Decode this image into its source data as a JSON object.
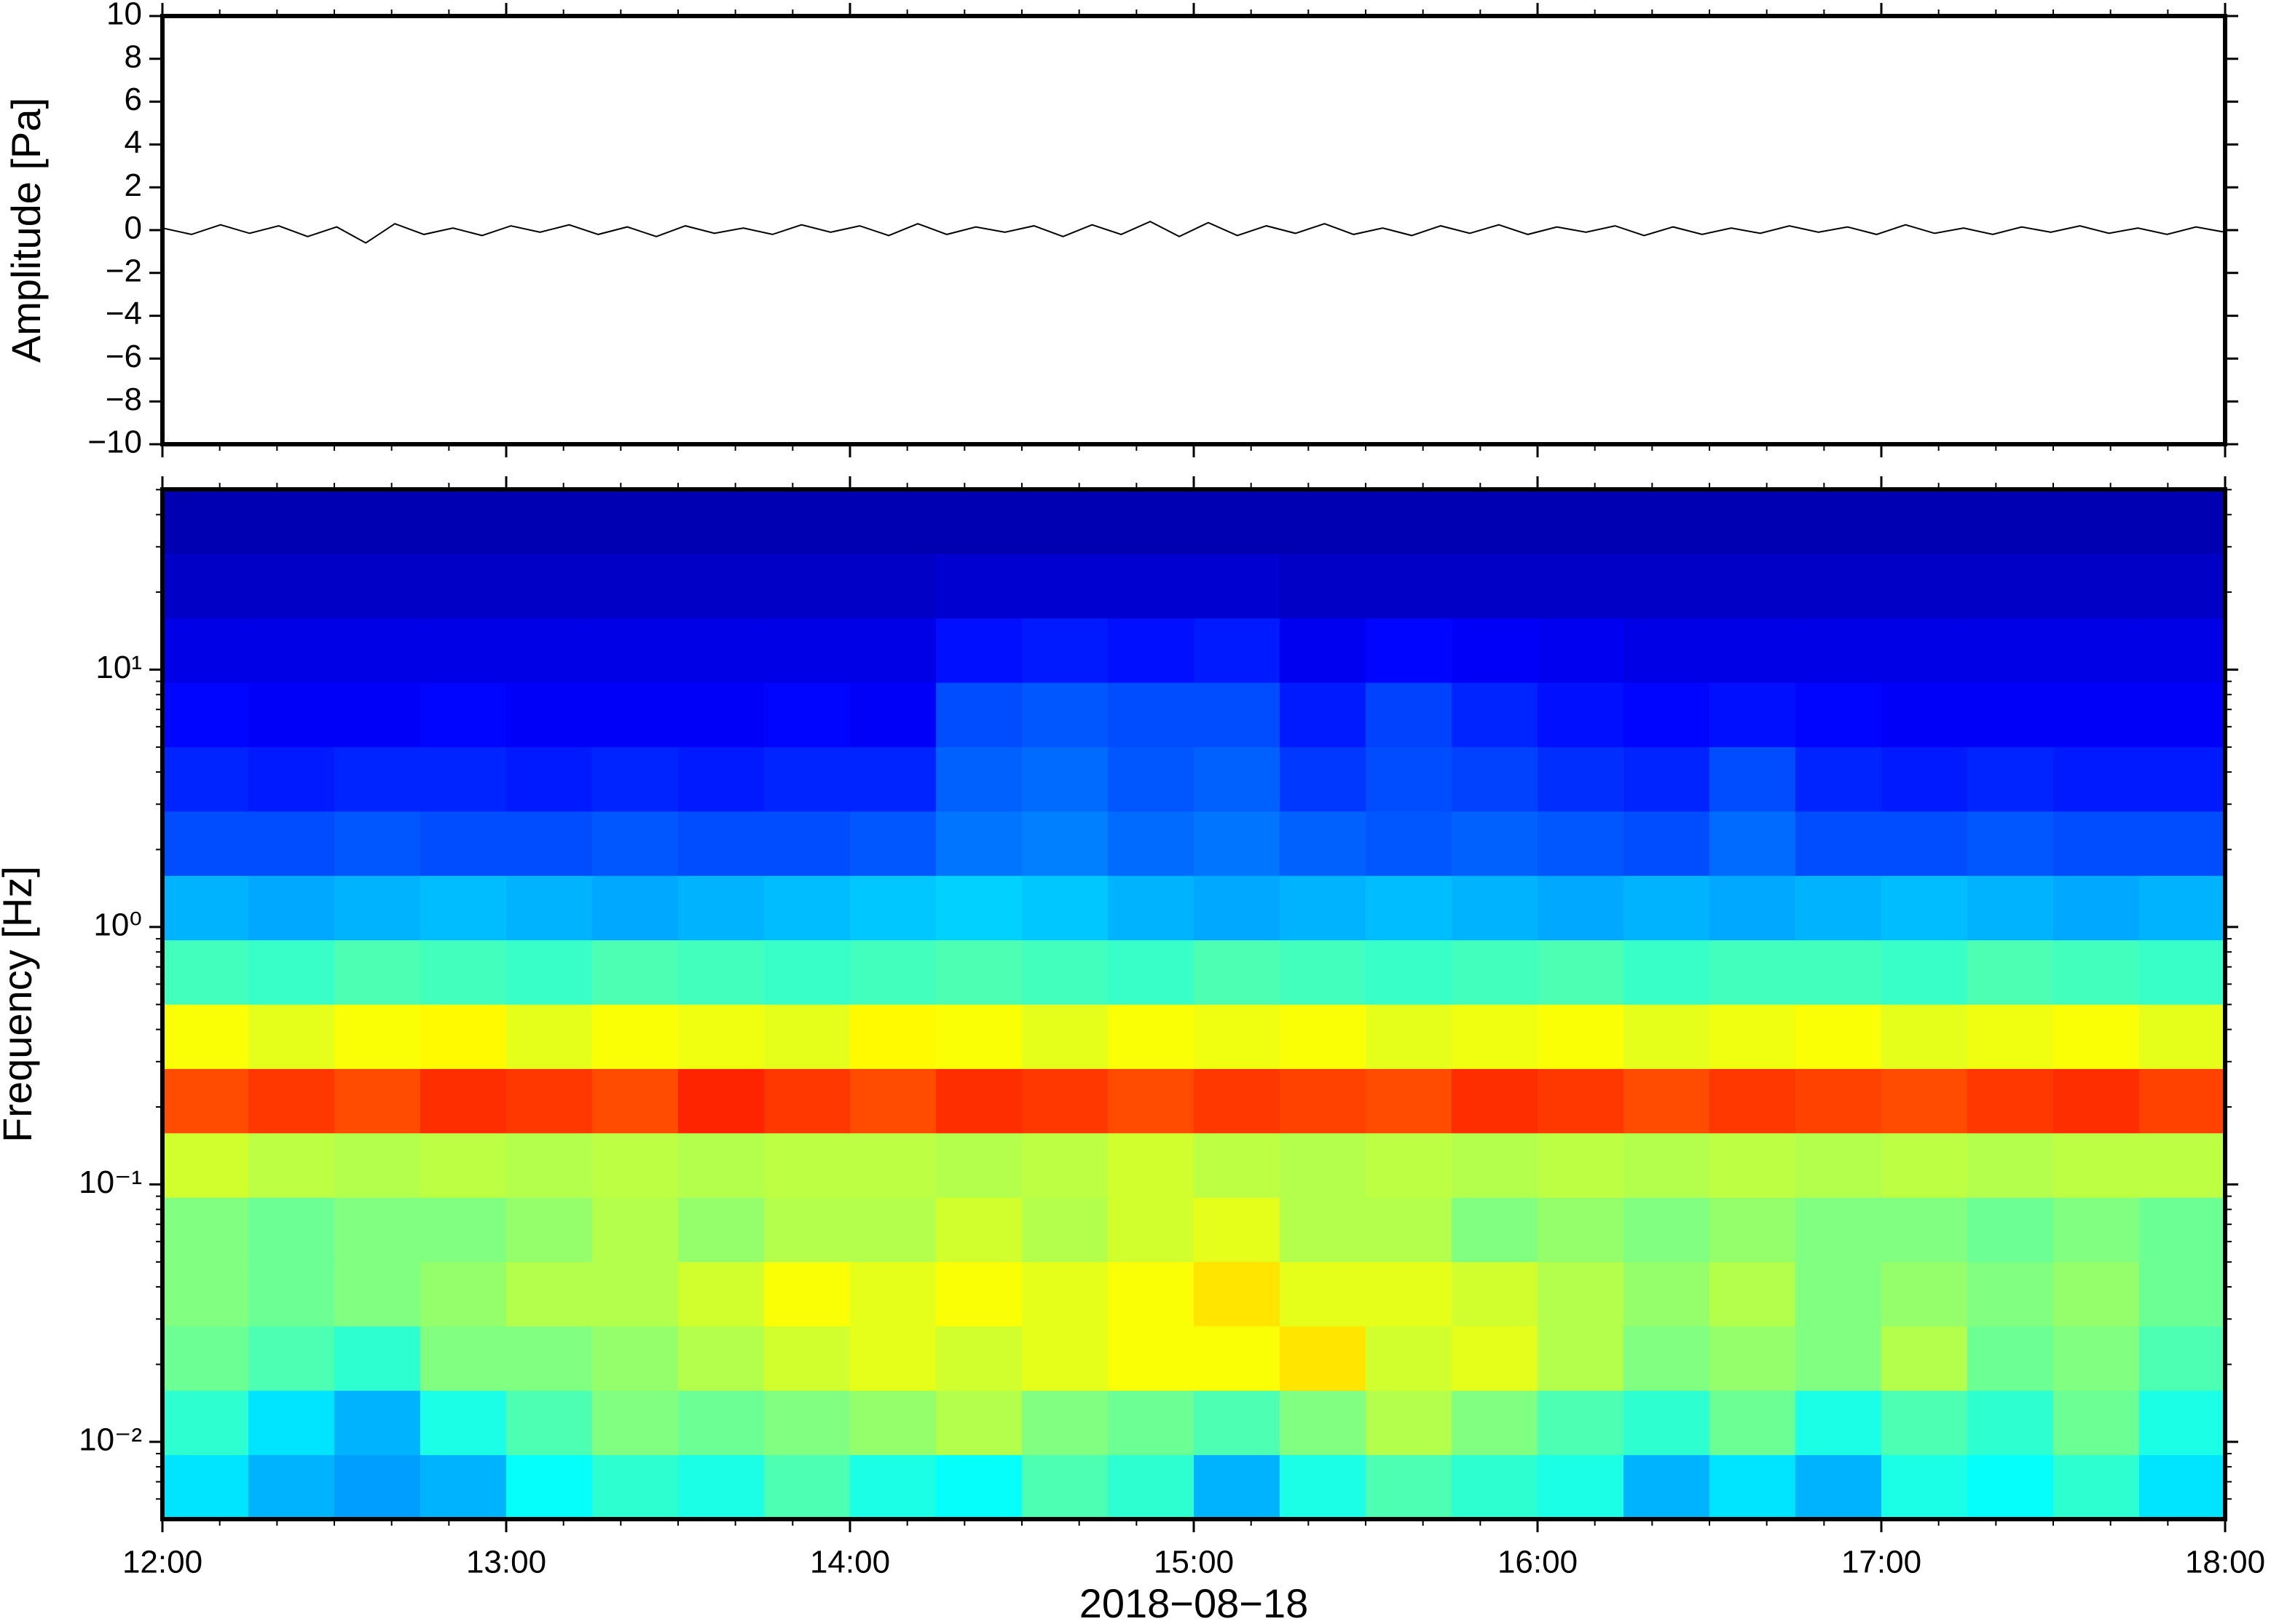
{
  "chart_data": [
    {
      "type": "line",
      "ylabel": "Amplitude [Pa]",
      "color": "#000000",
      "xlim": [
        12,
        18
      ],
      "xticks": [
        12,
        13,
        14,
        15,
        16,
        17,
        18
      ],
      "ylim": [
        -10,
        10
      ],
      "yticks": [
        {
          "value": -10,
          "label": "−10"
        },
        {
          "value": -8,
          "label": "−8"
        },
        {
          "value": -6,
          "label": "−6"
        },
        {
          "value": -4,
          "label": "−4"
        },
        {
          "value": -2,
          "label": "−2"
        },
        0,
        2,
        4,
        6,
        8,
        10
      ],
      "values": [
        0.1,
        -0.2,
        0.25,
        -0.15,
        0.2,
        -0.3,
        0.15,
        -0.6,
        0.3,
        -0.2,
        0.1,
        -0.25,
        0.2,
        -0.1,
        0.25,
        -0.2,
        0.15,
        -0.3,
        0.2,
        -0.15,
        0.1,
        -0.2,
        0.25,
        -0.1,
        0.2,
        -0.25,
        0.3,
        -0.2,
        0.15,
        -0.1,
        0.2,
        -0.3,
        0.25,
        -0.2,
        0.4,
        -0.3,
        0.35,
        -0.25,
        0.2,
        -0.15,
        0.3,
        -0.2,
        0.1,
        -0.25,
        0.2,
        -0.15,
        0.25,
        -0.2,
        0.15,
        -0.1,
        0.2,
        -0.25,
        0.15,
        -0.2,
        0.1,
        -0.15,
        0.2,
        -0.1,
        0.15,
        -0.2,
        0.25,
        -0.15,
        0.1,
        -0.2,
        0.15,
        -0.1,
        0.2,
        -0.15,
        0.1,
        -0.2,
        0.15,
        -0.1
      ]
    },
    {
      "type": "heatmap",
      "xlabel": "2018−08−18",
      "ylabel": "Frequency [Hz]",
      "xlim": [
        12,
        18
      ],
      "xticks": [
        {
          "value": 12,
          "label": "12:00"
        },
        {
          "value": 13,
          "label": "13:00"
        },
        {
          "value": 14,
          "label": "14:00"
        },
        {
          "value": 15,
          "label": "15:00"
        },
        {
          "value": 16,
          "label": "16:00"
        },
        {
          "value": 17,
          "label": "17:00"
        },
        {
          "value": 18,
          "label": "18:00"
        }
      ],
      "ylim": [
        0.00501,
        50.12
      ],
      "log_y": true,
      "yticks": [
        {
          "value": 0.01,
          "label": "10⁻²"
        },
        {
          "value": 0.1,
          "label": "10⁻¹"
        },
        {
          "value": 1,
          "label": "10⁰"
        },
        {
          "value": 10,
          "label": "10¹"
        }
      ],
      "colormap": "jet",
      "zlim": [
        0,
        1
      ],
      "x_edges": [
        12,
        12.25,
        12.5,
        12.75,
        13,
        13.25,
        13.5,
        13.75,
        14,
        14.25,
        14.5,
        14.75,
        15,
        15.25,
        15.5,
        15.75,
        16,
        16.25,
        16.5,
        16.75,
        17,
        17.25,
        17.5,
        17.75,
        18
      ],
      "y_edges": [
        0.00501,
        0.00891,
        0.01585,
        0.02818,
        0.0501,
        0.0891,
        0.1585,
        0.2818,
        0.501,
        0.891,
        1.585,
        2.818,
        5.012,
        8.913,
        15.85,
        28.18,
        50.12
      ],
      "z": [
        [
          0.35,
          0.3,
          0.28,
          0.3,
          0.38,
          0.42,
          0.4,
          0.45,
          0.4,
          0.38,
          0.45,
          0.42,
          0.3,
          0.4,
          0.45,
          0.42,
          0.4,
          0.3,
          0.35,
          0.3,
          0.4,
          0.38,
          0.42,
          0.35
        ],
        [
          0.42,
          0.35,
          0.3,
          0.4,
          0.45,
          0.5,
          0.48,
          0.5,
          0.52,
          0.55,
          0.5,
          0.48,
          0.45,
          0.5,
          0.55,
          0.5,
          0.45,
          0.42,
          0.48,
          0.4,
          0.45,
          0.42,
          0.48,
          0.4
        ],
        [
          0.48,
          0.45,
          0.42,
          0.5,
          0.5,
          0.52,
          0.55,
          0.58,
          0.6,
          0.58,
          0.6,
          0.62,
          0.62,
          0.65,
          0.58,
          0.6,
          0.55,
          0.5,
          0.52,
          0.5,
          0.55,
          0.48,
          0.5,
          0.45
        ],
        [
          0.5,
          0.48,
          0.5,
          0.52,
          0.55,
          0.55,
          0.58,
          0.62,
          0.6,
          0.62,
          0.6,
          0.62,
          0.65,
          0.6,
          0.6,
          0.58,
          0.55,
          0.52,
          0.55,
          0.5,
          0.52,
          0.5,
          0.52,
          0.48
        ],
        [
          0.5,
          0.48,
          0.5,
          0.5,
          0.52,
          0.55,
          0.52,
          0.55,
          0.55,
          0.58,
          0.55,
          0.58,
          0.6,
          0.55,
          0.55,
          0.5,
          0.52,
          0.5,
          0.52,
          0.5,
          0.5,
          0.48,
          0.5,
          0.48
        ],
        [
          0.58,
          0.56,
          0.55,
          0.56,
          0.55,
          0.56,
          0.55,
          0.56,
          0.56,
          0.55,
          0.56,
          0.58,
          0.56,
          0.55,
          0.56,
          0.55,
          0.56,
          0.55,
          0.56,
          0.55,
          0.56,
          0.55,
          0.56,
          0.56
        ],
        [
          0.8,
          0.82,
          0.8,
          0.83,
          0.82,
          0.8,
          0.84,
          0.82,
          0.8,
          0.83,
          0.82,
          0.8,
          0.82,
          0.81,
          0.8,
          0.83,
          0.82,
          0.8,
          0.82,
          0.81,
          0.8,
          0.82,
          0.83,
          0.81
        ],
        [
          0.62,
          0.6,
          0.62,
          0.63,
          0.6,
          0.62,
          0.61,
          0.6,
          0.63,
          0.62,
          0.6,
          0.62,
          0.61,
          0.62,
          0.6,
          0.61,
          0.62,
          0.6,
          0.61,
          0.62,
          0.6,
          0.61,
          0.62,
          0.6
        ],
        [
          0.44,
          0.43,
          0.45,
          0.44,
          0.43,
          0.45,
          0.44,
          0.43,
          0.44,
          0.45,
          0.44,
          0.43,
          0.45,
          0.44,
          0.43,
          0.44,
          0.45,
          0.43,
          0.44,
          0.44,
          0.43,
          0.45,
          0.44,
          0.43
        ],
        [
          0.3,
          0.29,
          0.3,
          0.31,
          0.3,
          0.29,
          0.3,
          0.31,
          0.32,
          0.33,
          0.32,
          0.3,
          0.29,
          0.3,
          0.31,
          0.3,
          0.29,
          0.3,
          0.29,
          0.3,
          0.31,
          0.3,
          0.29,
          0.3
        ],
        [
          0.2,
          0.2,
          0.21,
          0.2,
          0.2,
          0.21,
          0.2,
          0.2,
          0.21,
          0.24,
          0.25,
          0.23,
          0.24,
          0.22,
          0.21,
          0.22,
          0.21,
          0.2,
          0.23,
          0.2,
          0.2,
          0.21,
          0.2,
          0.2
        ],
        [
          0.16,
          0.15,
          0.16,
          0.16,
          0.15,
          0.16,
          0.15,
          0.16,
          0.16,
          0.22,
          0.23,
          0.21,
          0.22,
          0.18,
          0.2,
          0.19,
          0.17,
          0.16,
          0.2,
          0.16,
          0.15,
          0.16,
          0.15,
          0.15
        ],
        [
          0.13,
          0.12,
          0.12,
          0.13,
          0.12,
          0.12,
          0.12,
          0.13,
          0.12,
          0.2,
          0.21,
          0.2,
          0.2,
          0.15,
          0.19,
          0.16,
          0.14,
          0.13,
          0.14,
          0.13,
          0.12,
          0.12,
          0.12,
          0.12
        ],
        [
          0.1,
          0.1,
          0.1,
          0.1,
          0.1,
          0.1,
          0.1,
          0.1,
          0.1,
          0.14,
          0.15,
          0.14,
          0.15,
          0.11,
          0.13,
          0.12,
          0.11,
          0.1,
          0.1,
          0.1,
          0.1,
          0.1,
          0.1,
          0.1
        ],
        [
          0.07,
          0.07,
          0.07,
          0.07,
          0.07,
          0.07,
          0.07,
          0.07,
          0.07,
          0.08,
          0.08,
          0.08,
          0.08,
          0.07,
          0.07,
          0.07,
          0.07,
          0.07,
          0.07,
          0.07,
          0.07,
          0.07,
          0.07,
          0.07
        ],
        [
          0.05,
          0.05,
          0.05,
          0.05,
          0.05,
          0.05,
          0.05,
          0.05,
          0.05,
          0.05,
          0.05,
          0.05,
          0.05,
          0.05,
          0.05,
          0.05,
          0.05,
          0.05,
          0.05,
          0.05,
          0.05,
          0.05,
          0.05,
          0.05
        ]
      ]
    }
  ]
}
